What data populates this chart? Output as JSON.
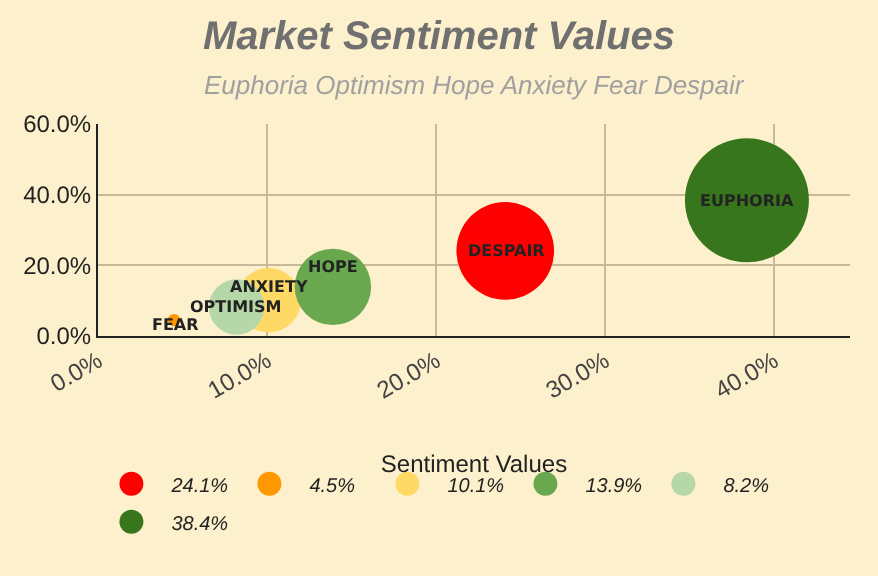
{
  "chart_data": {
    "type": "bubble",
    "title": "Market Sentiment Values",
    "subtitle": "Euphoria Optimism Hope Anxiety Fear Despair",
    "xlabel": "Sentiment Values",
    "series": [
      {
        "name": "24.1%",
        "color": "#ff0000",
        "x": [
          24.1
        ],
        "values": [
          24.1
        ],
        "sizes": [
          0.62
        ]
      },
      {
        "name": "4.5%",
        "color": "#ff9800",
        "x": [
          4.5
        ],
        "values": [
          4.5
        ],
        "sizes": [
          0.01
        ]
      },
      {
        "name": "10.1%",
        "color": "#ffd966",
        "x": [
          10.1
        ],
        "values": [
          10.1
        ],
        "sizes": [
          0.27
        ]
      },
      {
        "name": "13.9%",
        "color": "#6aa84f",
        "x": [
          13.9
        ],
        "values": [
          13.9
        ],
        "sizes": [
          0.38
        ]
      },
      {
        "name": "8.2%",
        "color": "#b6d7a8",
        "x": [
          8.2
        ],
        "values": [
          8.2
        ],
        "sizes": [
          0.2
        ]
      },
      {
        "name": "38.4%",
        "color": "#38761d",
        "x": [
          38.4
        ],
        "values": [
          38.4
        ],
        "sizes": [
          1
        ]
      }
    ],
    "annotations": [
      {
        "text": "DESPAIR",
        "x": 24.1,
        "y": 24.1
      },
      {
        "text": "FEAR",
        "x": 4.5,
        "y": 4.5
      },
      {
        "text": "ANXIETY",
        "x": 10.1,
        "y": 10.1
      },
      {
        "text": "HOPE",
        "x": 13.9,
        "y": 13.9
      },
      {
        "text": "OPTIMISM",
        "x": 8.2,
        "y": 8.2
      },
      {
        "text": "EUPHORIA",
        "x": 38.4,
        "y": 38.4
      }
    ],
    "xlim": [
      0,
      44.5
    ],
    "ylim": [
      0,
      60
    ],
    "xticks": [
      {
        "value": 0,
        "label": "0.0%"
      },
      {
        "value": 10,
        "label": "10.0%"
      },
      {
        "value": 20,
        "label": "20.0%"
      },
      {
        "value": 30,
        "label": "30.0%"
      },
      {
        "value": 40,
        "label": "40.0%"
      }
    ],
    "yticks": [
      {
        "value": 0,
        "label": "0.0%"
      },
      {
        "value": 20,
        "label": "20.0%"
      },
      {
        "value": 40,
        "label": "40.0%"
      },
      {
        "value": 60,
        "label": "60.0%"
      }
    ],
    "grid": true,
    "legend": "bottom",
    "marker": "circle"
  }
}
